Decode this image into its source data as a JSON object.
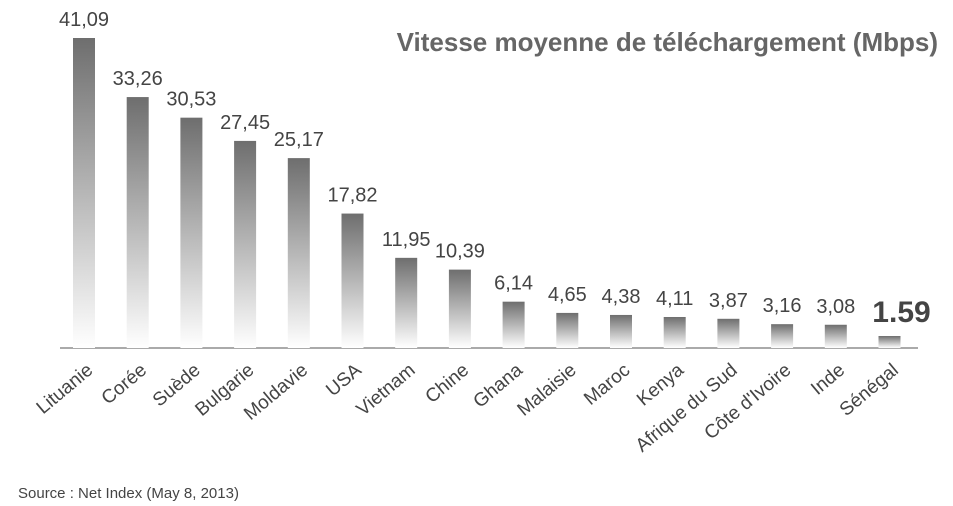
{
  "chart_data": {
    "type": "bar",
    "title": "Vitesse moyenne de téléchargement  (Mbps)",
    "source": "Source : Net Index (May 8, 2013)",
    "categories": [
      "Lituanie",
      "Corée",
      "Suède",
      "Bulgarie",
      "Moldavie",
      "USA",
      "Vietnam",
      "Chine",
      "Ghana",
      "Malaisie",
      "Maroc",
      "Kenya",
      "Afrique du Sud",
      "Côte d'Ivoire",
      "Inde",
      "Sénégal"
    ],
    "values": [
      41.09,
      33.26,
      30.53,
      27.45,
      25.17,
      17.82,
      11.95,
      10.39,
      6.14,
      4.65,
      4.38,
      4.11,
      3.87,
      3.16,
      3.08,
      1.59
    ],
    "value_labels": [
      "41,09",
      "33,26",
      "30,53",
      "27,45",
      "25,17",
      "17,82",
      "11,95",
      "10,39",
      "6,14",
      "4,65",
      "4,38",
      "4,11",
      "3,87",
      "3,16",
      "3,08",
      "1.59"
    ],
    "color": "#6e6e6e"
  }
}
